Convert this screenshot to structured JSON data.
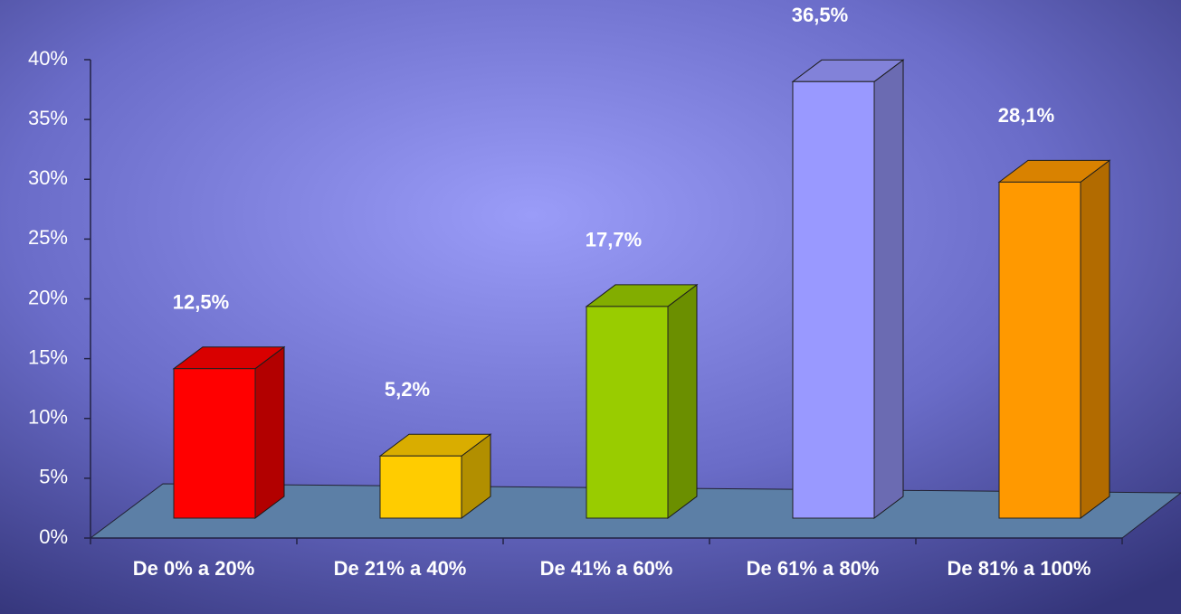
{
  "chart_data": {
    "type": "bar3d",
    "categories": [
      "De 0% a 20%",
      "De 21% a 40%",
      "De 41% a 60%",
      "De 61% a 80%",
      "De 81% a 100%"
    ],
    "values": [
      12.5,
      5.2,
      17.7,
      36.5,
      28.1
    ],
    "value_labels": [
      "12,5%",
      "5,2%",
      "17,7%",
      "36,5%",
      "28,1%"
    ],
    "colors": [
      "#ff0000",
      "#ffcc00",
      "#99cc00",
      "#9999ff",
      "#ff9900"
    ],
    "ylim": [
      0,
      40
    ],
    "yticks": [
      {
        "value": 0,
        "label": "0%"
      },
      {
        "value": 5,
        "label": "5%"
      },
      {
        "value": 10,
        "label": "10%"
      },
      {
        "value": 15,
        "label": "15%"
      },
      {
        "value": 20,
        "label": "20%"
      },
      {
        "value": 25,
        "label": "25%"
      },
      {
        "value": 30,
        "label": "30%"
      },
      {
        "value": 35,
        "label": "35%"
      },
      {
        "value": 40,
        "label": "40%"
      }
    ]
  }
}
